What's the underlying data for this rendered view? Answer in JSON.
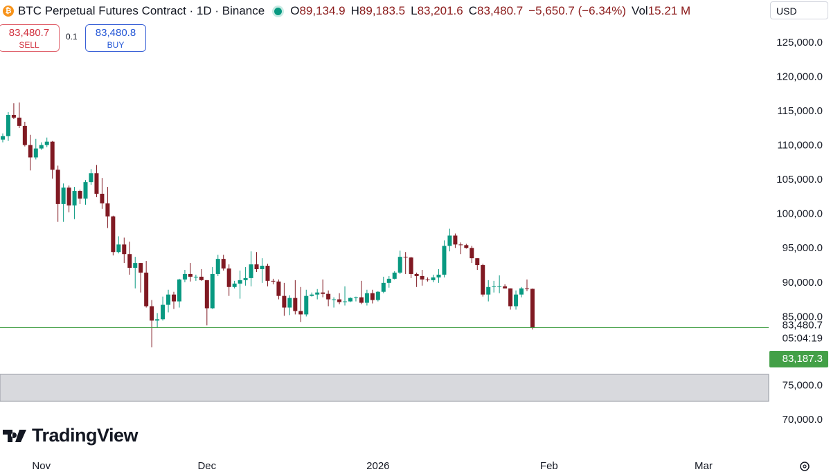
{
  "chart_data": {
    "type": "candlestick",
    "title": "BTC Perpetual Futures Contract · 1D · Binance",
    "ohlc_legend": {
      "keys": [
        "O",
        "H",
        "L",
        "C"
      ],
      "values": [
        "89,134.9",
        "89,183.5",
        "83,201.6",
        "83,480.7"
      ],
      "change": "−5,650.7 (−6.34%)",
      "volume_key": "Vol",
      "volume": "15.21 M"
    },
    "trade": {
      "sell_price": "83,480.7",
      "sell": "SELL",
      "quantity": "0.1",
      "buy_price": "83,480.8",
      "buy": "BUY"
    },
    "currency": "USD",
    "brand": "TradingView",
    "up_color": "#089981",
    "down_color": "#801922",
    "open": [
      110900,
      111400,
      114500,
      114100,
      112900,
      110100,
      108300,
      109600,
      110100,
      110600,
      106500,
      101500,
      103900,
      101300,
      103400,
      102300,
      104700,
      106000,
      103000,
      101600,
      99700,
      94500,
      95600,
      94200,
      92200,
      92900,
      91500,
      86600,
      84500,
      84700,
      86800,
      88300,
      87300,
      90500,
      91300,
      90900,
      90900,
      90400,
      86300,
      91300,
      93500,
      92100,
      89400,
      89900,
      90400,
      90700,
      92700,
      92000,
      92500,
      90300,
      90200,
      88100,
      86400,
      87800,
      85900,
      85400,
      88100,
      88300,
      88600,
      88400,
      87600,
      87600,
      87200,
      87300,
      87800,
      87900,
      87100,
      88500,
      87500,
      88700,
      90000,
      90600,
      91500,
      93800,
      93700,
      91300,
      91000,
      90500,
      90400,
      90800,
      91200,
      95400,
      96900,
      95600,
      95500,
      95100,
      93600,
      92600,
      88300,
      89400,
      89500,
      89500,
      89200,
      86600,
      88300,
      89200,
      89134.9
    ],
    "high": [
      111800,
      114900,
      116200,
      116300,
      113500,
      111600,
      111000,
      110500,
      111200,
      110700,
      107100,
      104500,
      104200,
      104000,
      103600,
      105000,
      106600,
      107200,
      105300,
      104000,
      99800,
      96800,
      96600,
      96000,
      93800,
      92900,
      93200,
      87500,
      85600,
      88000,
      89000,
      88700,
      90600,
      91900,
      92900,
      91200,
      92000,
      90400,
      92300,
      94100,
      94100,
      92700,
      90300,
      91800,
      92300,
      94600,
      94500,
      93600,
      92800,
      90600,
      90500,
      90000,
      88200,
      90400,
      89400,
      89000,
      88600,
      89100,
      90500,
      88900,
      87900,
      88500,
      89500,
      87900,
      88000,
      90300,
      89000,
      89000,
      88800,
      90900,
      91000,
      91700,
      94700,
      94500,
      93800,
      91500,
      91900,
      90800,
      91200,
      92000,
      96200,
      97900,
      97200,
      95900,
      95700,
      95400,
      93600,
      92800,
      90400,
      90300,
      91100,
      89800,
      89200,
      88900,
      89400,
      90500,
      89183.5
    ],
    "low": [
      110500,
      110700,
      113900,
      112600,
      109900,
      106400,
      108000,
      109400,
      109800,
      105200,
      98900,
      98900,
      100300,
      99300,
      101500,
      101400,
      104300,
      102500,
      100800,
      98000,
      94000,
      94300,
      92900,
      91200,
      89200,
      88600,
      86400,
      80600,
      83500,
      84500,
      85700,
      86200,
      86400,
      90100,
      90200,
      90300,
      90300,
      83800,
      86200,
      91000,
      91800,
      88100,
      89200,
      87700,
      89600,
      89500,
      91600,
      90000,
      89500,
      89800,
      87600,
      85200,
      85300,
      85400,
      84300,
      85100,
      88000,
      87600,
      87900,
      86600,
      86400,
      86900,
      86700,
      87200,
      87300,
      86900,
      86700,
      87000,
      87300,
      88500,
      89300,
      90500,
      91300,
      91300,
      90700,
      89400,
      89600,
      90200,
      90100,
      90000,
      90800,
      94600,
      95100,
      94200,
      95000,
      92900,
      91900,
      88000,
      87300,
      88600,
      88500,
      89200,
      86100,
      86100,
      87900,
      88800,
      83201.6
    ],
    "close": [
      111400,
      114500,
      114100,
      112900,
      110100,
      108300,
      109600,
      110100,
      110600,
      106500,
      101500,
      103900,
      101300,
      103400,
      102300,
      104700,
      106000,
      103000,
      101600,
      99700,
      94500,
      95600,
      94200,
      92200,
      92900,
      91500,
      86600,
      84500,
      84700,
      86800,
      88300,
      87300,
      90500,
      91300,
      90900,
      90900,
      90400,
      86300,
      91300,
      93500,
      92100,
      89400,
      89900,
      90400,
      90700,
      92700,
      92000,
      92500,
      90300,
      90200,
      88100,
      86400,
      87800,
      85900,
      85400,
      88100,
      88300,
      88600,
      88400,
      87600,
      87600,
      87200,
      87300,
      87800,
      87900,
      87100,
      88500,
      87500,
      88700,
      90000,
      90600,
      91500,
      93800,
      93700,
      91300,
      91000,
      90500,
      90400,
      90800,
      91200,
      95400,
      96900,
      95600,
      95500,
      95100,
      93600,
      92600,
      88300,
      89400,
      89500,
      89500,
      89200,
      86600,
      88300,
      89200,
      89100,
      83480.7
    ],
    "xlim": [
      -0.5,
      138.8
    ],
    "xticks": [
      {
        "value": 7,
        "label": "Nov"
      },
      {
        "value": 37,
        "label": "Dec"
      },
      {
        "value": 68,
        "label": "2026"
      },
      {
        "value": 99,
        "label": "Feb"
      },
      {
        "value": 127,
        "label": "Mar"
      }
    ],
    "ylim": [
      64955,
      131257
    ],
    "yticks": [
      {
        "value": 70000,
        "label": "70,000.0"
      },
      {
        "value": 75000,
        "label": "75,000.0"
      },
      {
        "value": 85000,
        "label": "85,000.0"
      },
      {
        "value": 90000,
        "label": "90,000.0"
      },
      {
        "value": 95000,
        "label": "95,000.0"
      },
      {
        "value": 100000,
        "label": "100,000.0"
      },
      {
        "value": 105000,
        "label": "105,000.0"
      },
      {
        "value": 110000,
        "label": "110,000.0"
      },
      {
        "value": 115000,
        "label": "115,000.0"
      },
      {
        "value": 120000,
        "label": "120,000.0"
      },
      {
        "value": 125000,
        "label": "125,000.0"
      }
    ],
    "price_line": {
      "value": 83480.7,
      "label": "83,480.7",
      "color": "#43a047"
    },
    "countdown": "05:04:19",
    "marker_label": "83,187.3"
  }
}
